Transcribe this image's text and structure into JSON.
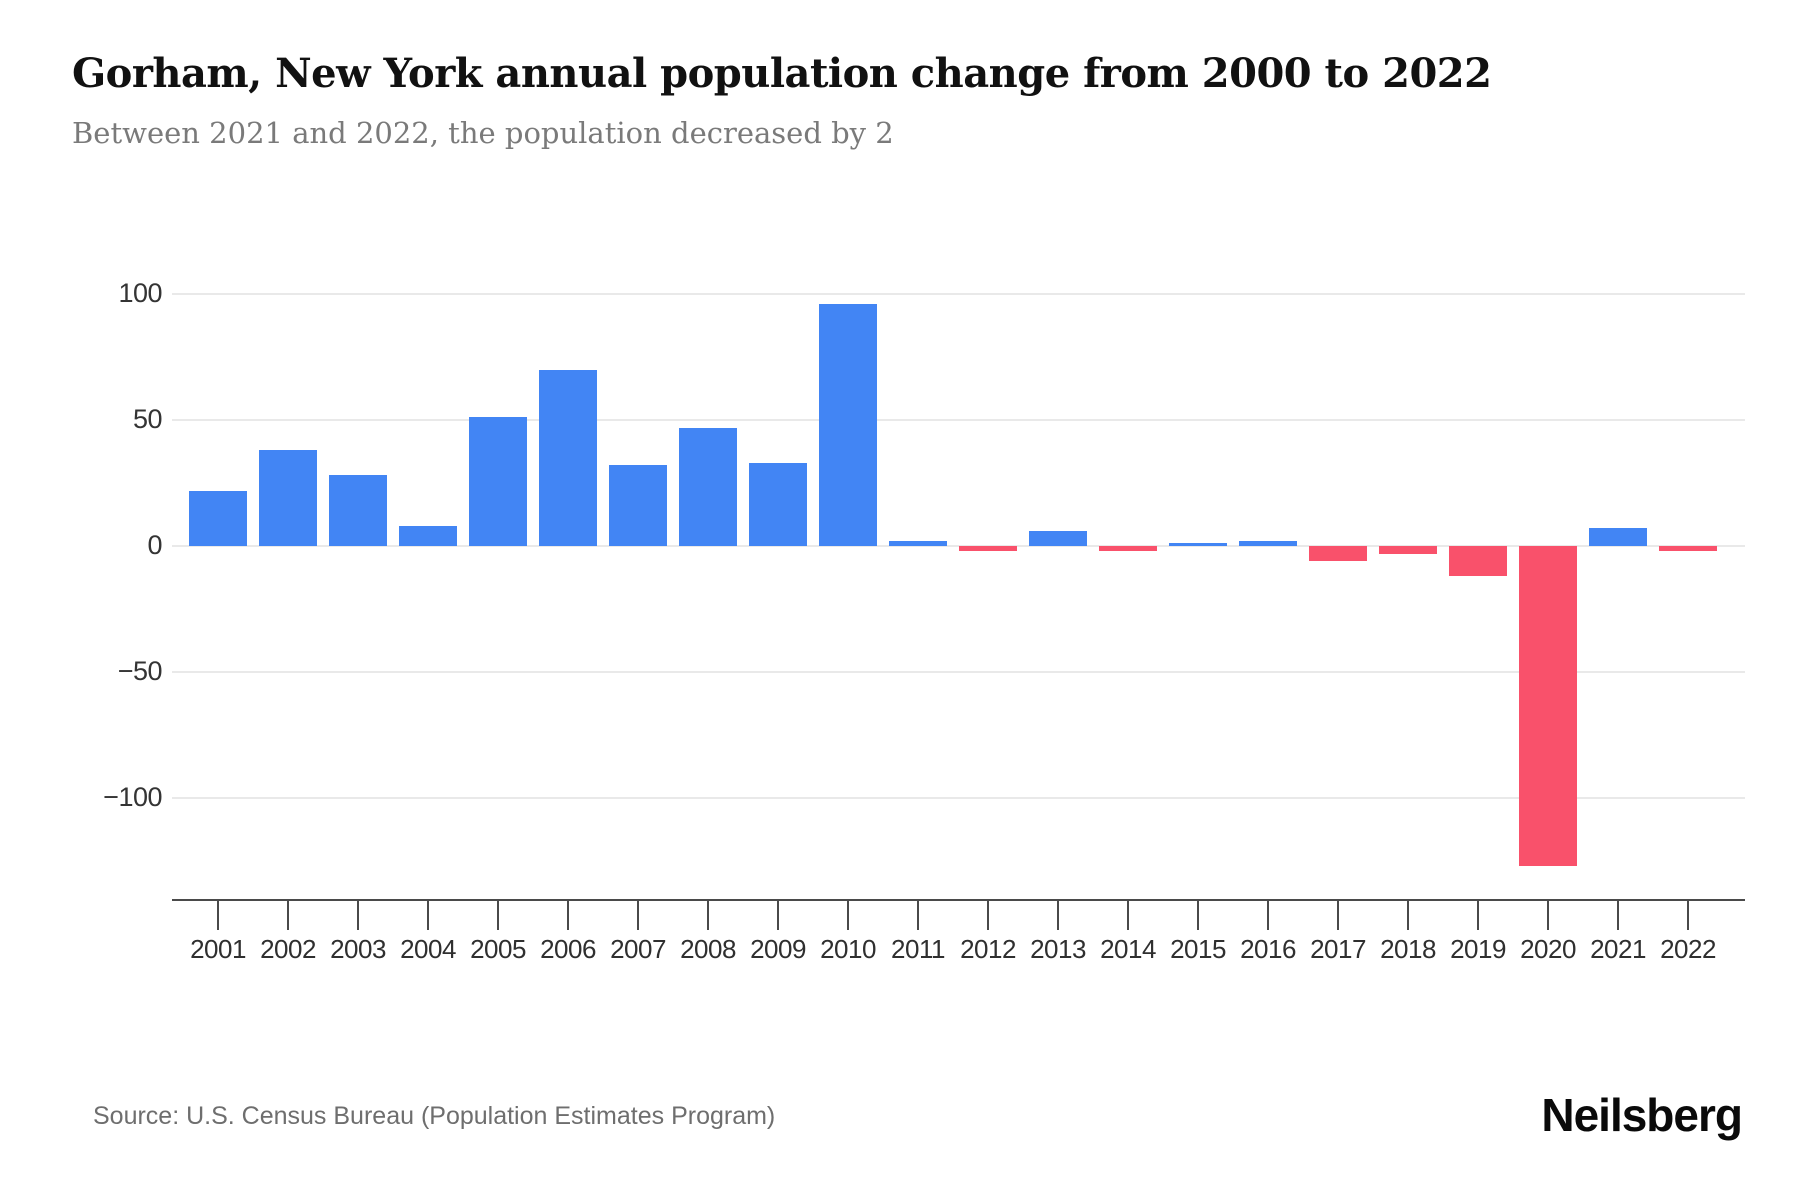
{
  "header": {
    "title": "Gorham, New York annual population change from 2000 to 2022",
    "subtitle": "Between 2021 and 2022, the population decreased by 2"
  },
  "footer": {
    "source": "Source: U.S. Census Bureau (Population Estimates Program)",
    "brand": "Neilsberg"
  },
  "colors": {
    "positive_bar": "#4285F4",
    "negative_bar": "#F9516B",
    "gridline": "#E9E9E9",
    "axis": "#4A4A4A",
    "tick_label": "#2F2F2F",
    "subtitle_text": "#7A7A7A",
    "source_text": "#6E6E6E"
  },
  "chart_data": {
    "type": "bar",
    "title": "Gorham, New York annual population change from 2000 to 2022",
    "subtitle": "Between 2021 and 2022, the population decreased by 2",
    "xlabel": "",
    "ylabel": "",
    "categories": [
      "2001",
      "2002",
      "2003",
      "2004",
      "2005",
      "2006",
      "2007",
      "2008",
      "2009",
      "2010",
      "2011",
      "2012",
      "2013",
      "2014",
      "2015",
      "2016",
      "2017",
      "2018",
      "2019",
      "2020",
      "2021",
      "2022"
    ],
    "values": [
      22,
      38,
      28,
      8,
      51,
      70,
      32,
      47,
      33,
      96,
      2,
      -2,
      6,
      -2,
      1,
      2,
      -6,
      -3,
      -12,
      -127,
      7,
      -2
    ],
    "positive_color": "#4285F4",
    "negative_color": "#F9516B",
    "yticks": [
      100,
      50,
      0,
      -50,
      -100
    ],
    "ylim": [
      -140,
      112
    ],
    "grid": true,
    "legend": false
  }
}
